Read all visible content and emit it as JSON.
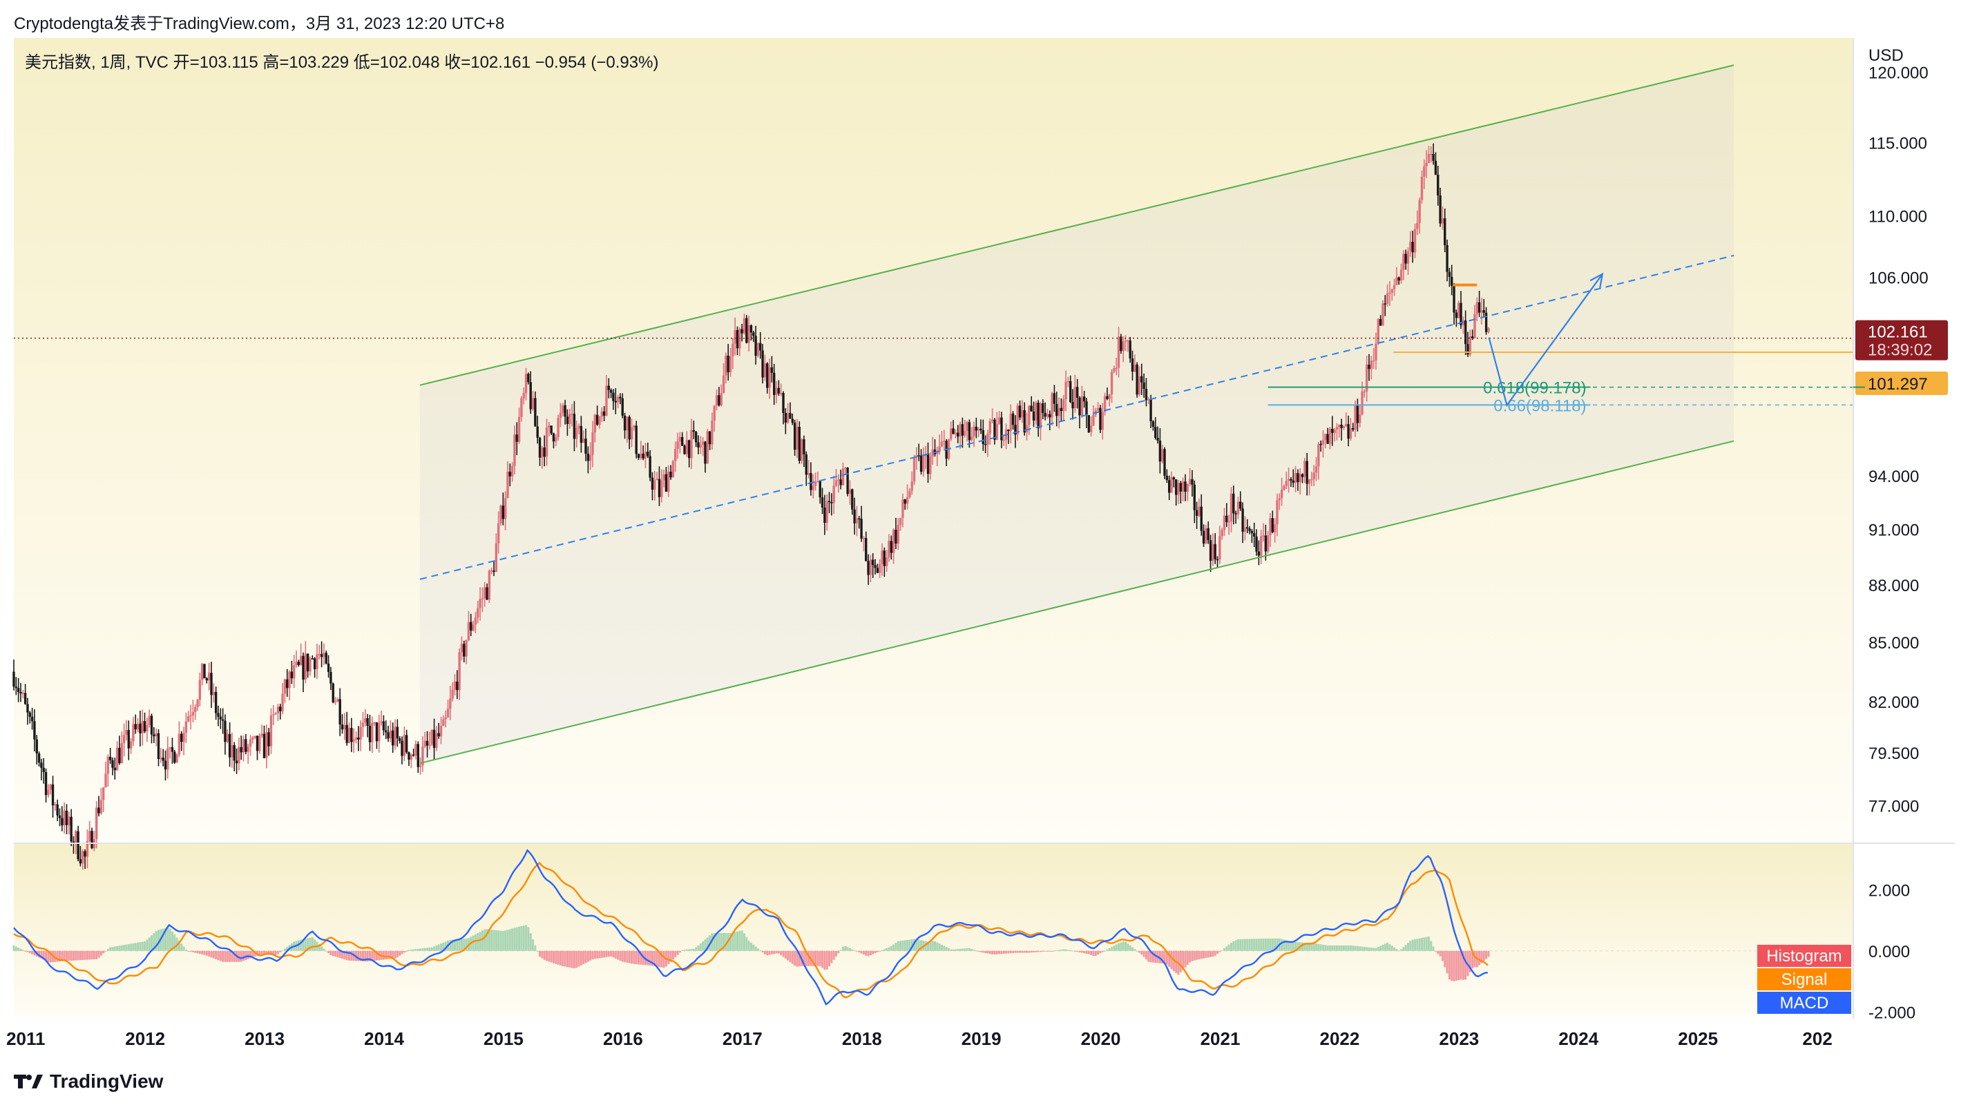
{
  "header": {
    "text": "Cryptodengta发表于TradingView.com，3月 31, 2023 12:20 UTC+8"
  },
  "legend": {
    "text": "美元指数, 1周, TVC  开=103.115  高=103.229  低=102.048  收=102.161  −0.954 (−0.93%)"
  },
  "footer": {
    "brand": "TradingView"
  },
  "colors": {
    "bg_top": "#f6efc8",
    "bg_bottom": "#fffdf6",
    "up": "#e0707a",
    "down": "#1a1a1a",
    "channel": "#55b04e",
    "midline": "#2f80e8",
    "fib618": "#1d9a78",
    "fib66": "#5aaee0",
    "support": "#f5b13c",
    "resistance": "#f58a1f",
    "macd": "#2962ff",
    "signal": "#ff8a00",
    "hist": "#c8d8b8"
  },
  "chart_data": [
    {
      "type": "candlestick",
      "title": "美元指数, 1周, TVC",
      "unit": "USD",
      "x_ticks": [
        "2011",
        "2012",
        "2013",
        "2014",
        "2015",
        "2016",
        "2017",
        "2018",
        "2019",
        "2020",
        "2021",
        "2022",
        "2023",
        "2024",
        "2025",
        "202"
      ],
      "x_range": [
        2010.9,
        2026.3
      ],
      "y_range": [
        75.3,
        122.5
      ],
      "y_scale": "log",
      "y_ticks": [
        "120.000",
        "115.000",
        "110.000",
        "106.000",
        "94.000",
        "91.000",
        "88.000",
        "85.000",
        "82.000",
        "79.500",
        "77.000"
      ],
      "price_path": [
        [
          2010.9,
          83.5
        ],
        [
          2011.0,
          81.5
        ],
        [
          2011.2,
          77.5
        ],
        [
          2011.5,
          74.5
        ],
        [
          2011.7,
          79.0
        ],
        [
          2012.0,
          81.0
        ],
        [
          2012.2,
          79.0
        ],
        [
          2012.5,
          83.5
        ],
        [
          2012.7,
          79.5
        ],
        [
          2013.0,
          79.8
        ],
        [
          2013.2,
          83.0
        ],
        [
          2013.45,
          84.5
        ],
        [
          2013.7,
          80.5
        ],
        [
          2014.0,
          80.5
        ],
        [
          2014.3,
          79.3
        ],
        [
          2014.5,
          80.5
        ],
        [
          2014.7,
          85.5
        ],
        [
          2014.9,
          88.5
        ],
        [
          2015.05,
          94.5
        ],
        [
          2015.2,
          99.5
        ],
        [
          2015.3,
          95.5
        ],
        [
          2015.5,
          97.5
        ],
        [
          2015.7,
          95.5
        ],
        [
          2015.9,
          99.5
        ],
        [
          2016.1,
          96.0
        ],
        [
          2016.3,
          93.0
        ],
        [
          2016.5,
          96.0
        ],
        [
          2016.7,
          95.5
        ],
        [
          2016.9,
          101.5
        ],
        [
          2017.0,
          103.0
        ],
        [
          2017.2,
          100.0
        ],
        [
          2017.4,
          97.0
        ],
        [
          2017.6,
          93.5
        ],
        [
          2017.7,
          92.0
        ],
        [
          2017.85,
          94.5
        ],
        [
          2018.05,
          89.0
        ],
        [
          2018.1,
          88.5
        ],
        [
          2018.3,
          91.0
        ],
        [
          2018.45,
          94.5
        ],
        [
          2018.6,
          95.0
        ],
        [
          2018.8,
          96.5
        ],
        [
          2019.0,
          96.0
        ],
        [
          2019.2,
          97.0
        ],
        [
          2019.45,
          97.5
        ],
        [
          2019.6,
          98.0
        ],
        [
          2019.75,
          99.0
        ],
        [
          2019.9,
          97.0
        ],
        [
          2020.0,
          97.5
        ],
        [
          2020.2,
          102.8
        ],
        [
          2020.3,
          99.5
        ],
        [
          2020.45,
          97.0
        ],
        [
          2020.55,
          93.5
        ],
        [
          2020.75,
          93.0
        ],
        [
          2020.95,
          89.5
        ],
        [
          2021.1,
          92.5
        ],
        [
          2021.2,
          91.0
        ],
        [
          2021.35,
          89.9
        ],
        [
          2021.5,
          92.5
        ],
        [
          2021.7,
          94.0
        ],
        [
          2021.9,
          96.0
        ],
        [
          2022.1,
          96.5
        ],
        [
          2022.2,
          99.0
        ],
        [
          2022.35,
          103.5
        ],
        [
          2022.5,
          106.5
        ],
        [
          2022.6,
          108.0
        ],
        [
          2022.75,
          114.5
        ],
        [
          2022.82,
          112.0
        ],
        [
          2022.9,
          106.0
        ],
        [
          2023.0,
          103.5
        ],
        [
          2023.1,
          101.5
        ],
        [
          2023.15,
          105.0
        ],
        [
          2023.2,
          103.5
        ],
        [
          2023.25,
          102.2
        ]
      ],
      "last_price": {
        "value": 102.161,
        "label": "102.161",
        "countdown": "18:39:02"
      },
      "support_level": {
        "value": 101.297,
        "label": "101.297"
      },
      "resistance_level": 105.5,
      "fib_levels": [
        {
          "ratio": 0.618,
          "value": 99.178,
          "label": "0.618(99.178)"
        },
        {
          "ratio": 0.66,
          "value": 98.118,
          "label": "0.66(98.118)"
        }
      ],
      "channel": {
        "upper": [
          [
            2014.3,
            99.3
          ],
          [
            2025.3,
            120.5
          ]
        ],
        "lower": [
          [
            2014.3,
            79.0
          ],
          [
            2025.3,
            96.0
          ]
        ],
        "mid": [
          [
            2014.3,
            88.3
          ],
          [
            2025.3,
            107.4
          ]
        ]
      },
      "projection": [
        [
          2023.25,
          102.2
        ],
        [
          2023.4,
          98.1
        ],
        [
          2024.2,
          106.2
        ]
      ]
    },
    {
      "type": "line",
      "title": "MACD",
      "y_range": [
        -2.15,
        3.5
      ],
      "y_ticks": [
        "2.000",
        "0.000",
        "-2.000"
      ],
      "legend": [
        "Histogram",
        "Signal",
        "MACD"
      ],
      "macd_path": [
        [
          2010.9,
          0.8
        ],
        [
          2011.2,
          -0.5
        ],
        [
          2011.6,
          -1.2
        ],
        [
          2012.0,
          -0.3
        ],
        [
          2012.2,
          0.8
        ],
        [
          2012.5,
          0.4
        ],
        [
          2012.8,
          -0.2
        ],
        [
          2013.1,
          -0.3
        ],
        [
          2013.4,
          0.6
        ],
        [
          2013.7,
          -0.1
        ],
        [
          2014.1,
          -0.6
        ],
        [
          2014.4,
          -0.2
        ],
        [
          2014.7,
          0.6
        ],
        [
          2015.0,
          2.0
        ],
        [
          2015.2,
          3.3
        ],
        [
          2015.35,
          2.4
        ],
        [
          2015.6,
          1.3
        ],
        [
          2015.9,
          0.9
        ],
        [
          2016.1,
          0.1
        ],
        [
          2016.35,
          -0.8
        ],
        [
          2016.6,
          -0.4
        ],
        [
          2016.9,
          1.1
        ],
        [
          2017.0,
          1.7
        ],
        [
          2017.3,
          1.0
        ],
        [
          2017.5,
          -0.3
        ],
        [
          2017.7,
          -1.7
        ],
        [
          2017.85,
          -1.3
        ],
        [
          2018.05,
          -1.4
        ],
        [
          2018.25,
          -0.7
        ],
        [
          2018.45,
          0.3
        ],
        [
          2018.6,
          0.8
        ],
        [
          2018.9,
          0.9
        ],
        [
          2019.1,
          0.6
        ],
        [
          2019.4,
          0.5
        ],
        [
          2019.7,
          0.5
        ],
        [
          2019.95,
          0.1
        ],
        [
          2020.2,
          0.7
        ],
        [
          2020.35,
          0.3
        ],
        [
          2020.55,
          -0.5
        ],
        [
          2020.65,
          -1.3
        ],
        [
          2020.8,
          -1.3
        ],
        [
          2020.95,
          -1.4
        ],
        [
          2021.1,
          -0.8
        ],
        [
          2021.3,
          -0.3
        ],
        [
          2021.5,
          0.2
        ],
        [
          2021.8,
          0.6
        ],
        [
          2022.1,
          0.9
        ],
        [
          2022.3,
          1.0
        ],
        [
          2022.5,
          1.6
        ],
        [
          2022.6,
          2.6
        ],
        [
          2022.75,
          3.1
        ],
        [
          2022.85,
          2.3
        ],
        [
          2022.95,
          0.8
        ],
        [
          2023.05,
          -0.4
        ],
        [
          2023.15,
          -0.8
        ],
        [
          2023.25,
          -0.75
        ]
      ],
      "signal_path": [
        [
          2010.9,
          0.6
        ],
        [
          2011.3,
          -0.3
        ],
        [
          2011.7,
          -1.1
        ],
        [
          2012.1,
          -0.5
        ],
        [
          2012.35,
          0.6
        ],
        [
          2012.65,
          0.5
        ],
        [
          2012.95,
          -0.1
        ],
        [
          2013.25,
          -0.2
        ],
        [
          2013.55,
          0.4
        ],
        [
          2013.85,
          0.1
        ],
        [
          2014.2,
          -0.5
        ],
        [
          2014.55,
          -0.2
        ],
        [
          2014.85,
          0.5
        ],
        [
          2015.1,
          1.8
        ],
        [
          2015.3,
          2.9
        ],
        [
          2015.5,
          2.3
        ],
        [
          2015.75,
          1.4
        ],
        [
          2016.0,
          0.9
        ],
        [
          2016.25,
          0.1
        ],
        [
          2016.5,
          -0.6
        ],
        [
          2016.75,
          -0.3
        ],
        [
          2017.05,
          1.2
        ],
        [
          2017.2,
          1.4
        ],
        [
          2017.45,
          0.6
        ],
        [
          2017.65,
          -0.8
        ],
        [
          2017.85,
          -1.5
        ],
        [
          2018.05,
          -1.2
        ],
        [
          2018.3,
          -0.8
        ],
        [
          2018.55,
          0.3
        ],
        [
          2018.75,
          0.8
        ],
        [
          2019.0,
          0.8
        ],
        [
          2019.3,
          0.6
        ],
        [
          2019.6,
          0.5
        ],
        [
          2019.9,
          0.3
        ],
        [
          2020.15,
          0.3
        ],
        [
          2020.4,
          0.5
        ],
        [
          2020.6,
          -0.2
        ],
        [
          2020.75,
          -0.9
        ],
        [
          2020.95,
          -1.2
        ],
        [
          2021.15,
          -1.1
        ],
        [
          2021.4,
          -0.5
        ],
        [
          2021.6,
          0.0
        ],
        [
          2021.9,
          0.5
        ],
        [
          2022.2,
          0.8
        ],
        [
          2022.4,
          1.0
        ],
        [
          2022.6,
          2.2
        ],
        [
          2022.8,
          2.7
        ],
        [
          2022.92,
          2.3
        ],
        [
          2023.02,
          1.0
        ],
        [
          2023.12,
          -0.1
        ],
        [
          2023.25,
          -0.55
        ]
      ]
    }
  ]
}
